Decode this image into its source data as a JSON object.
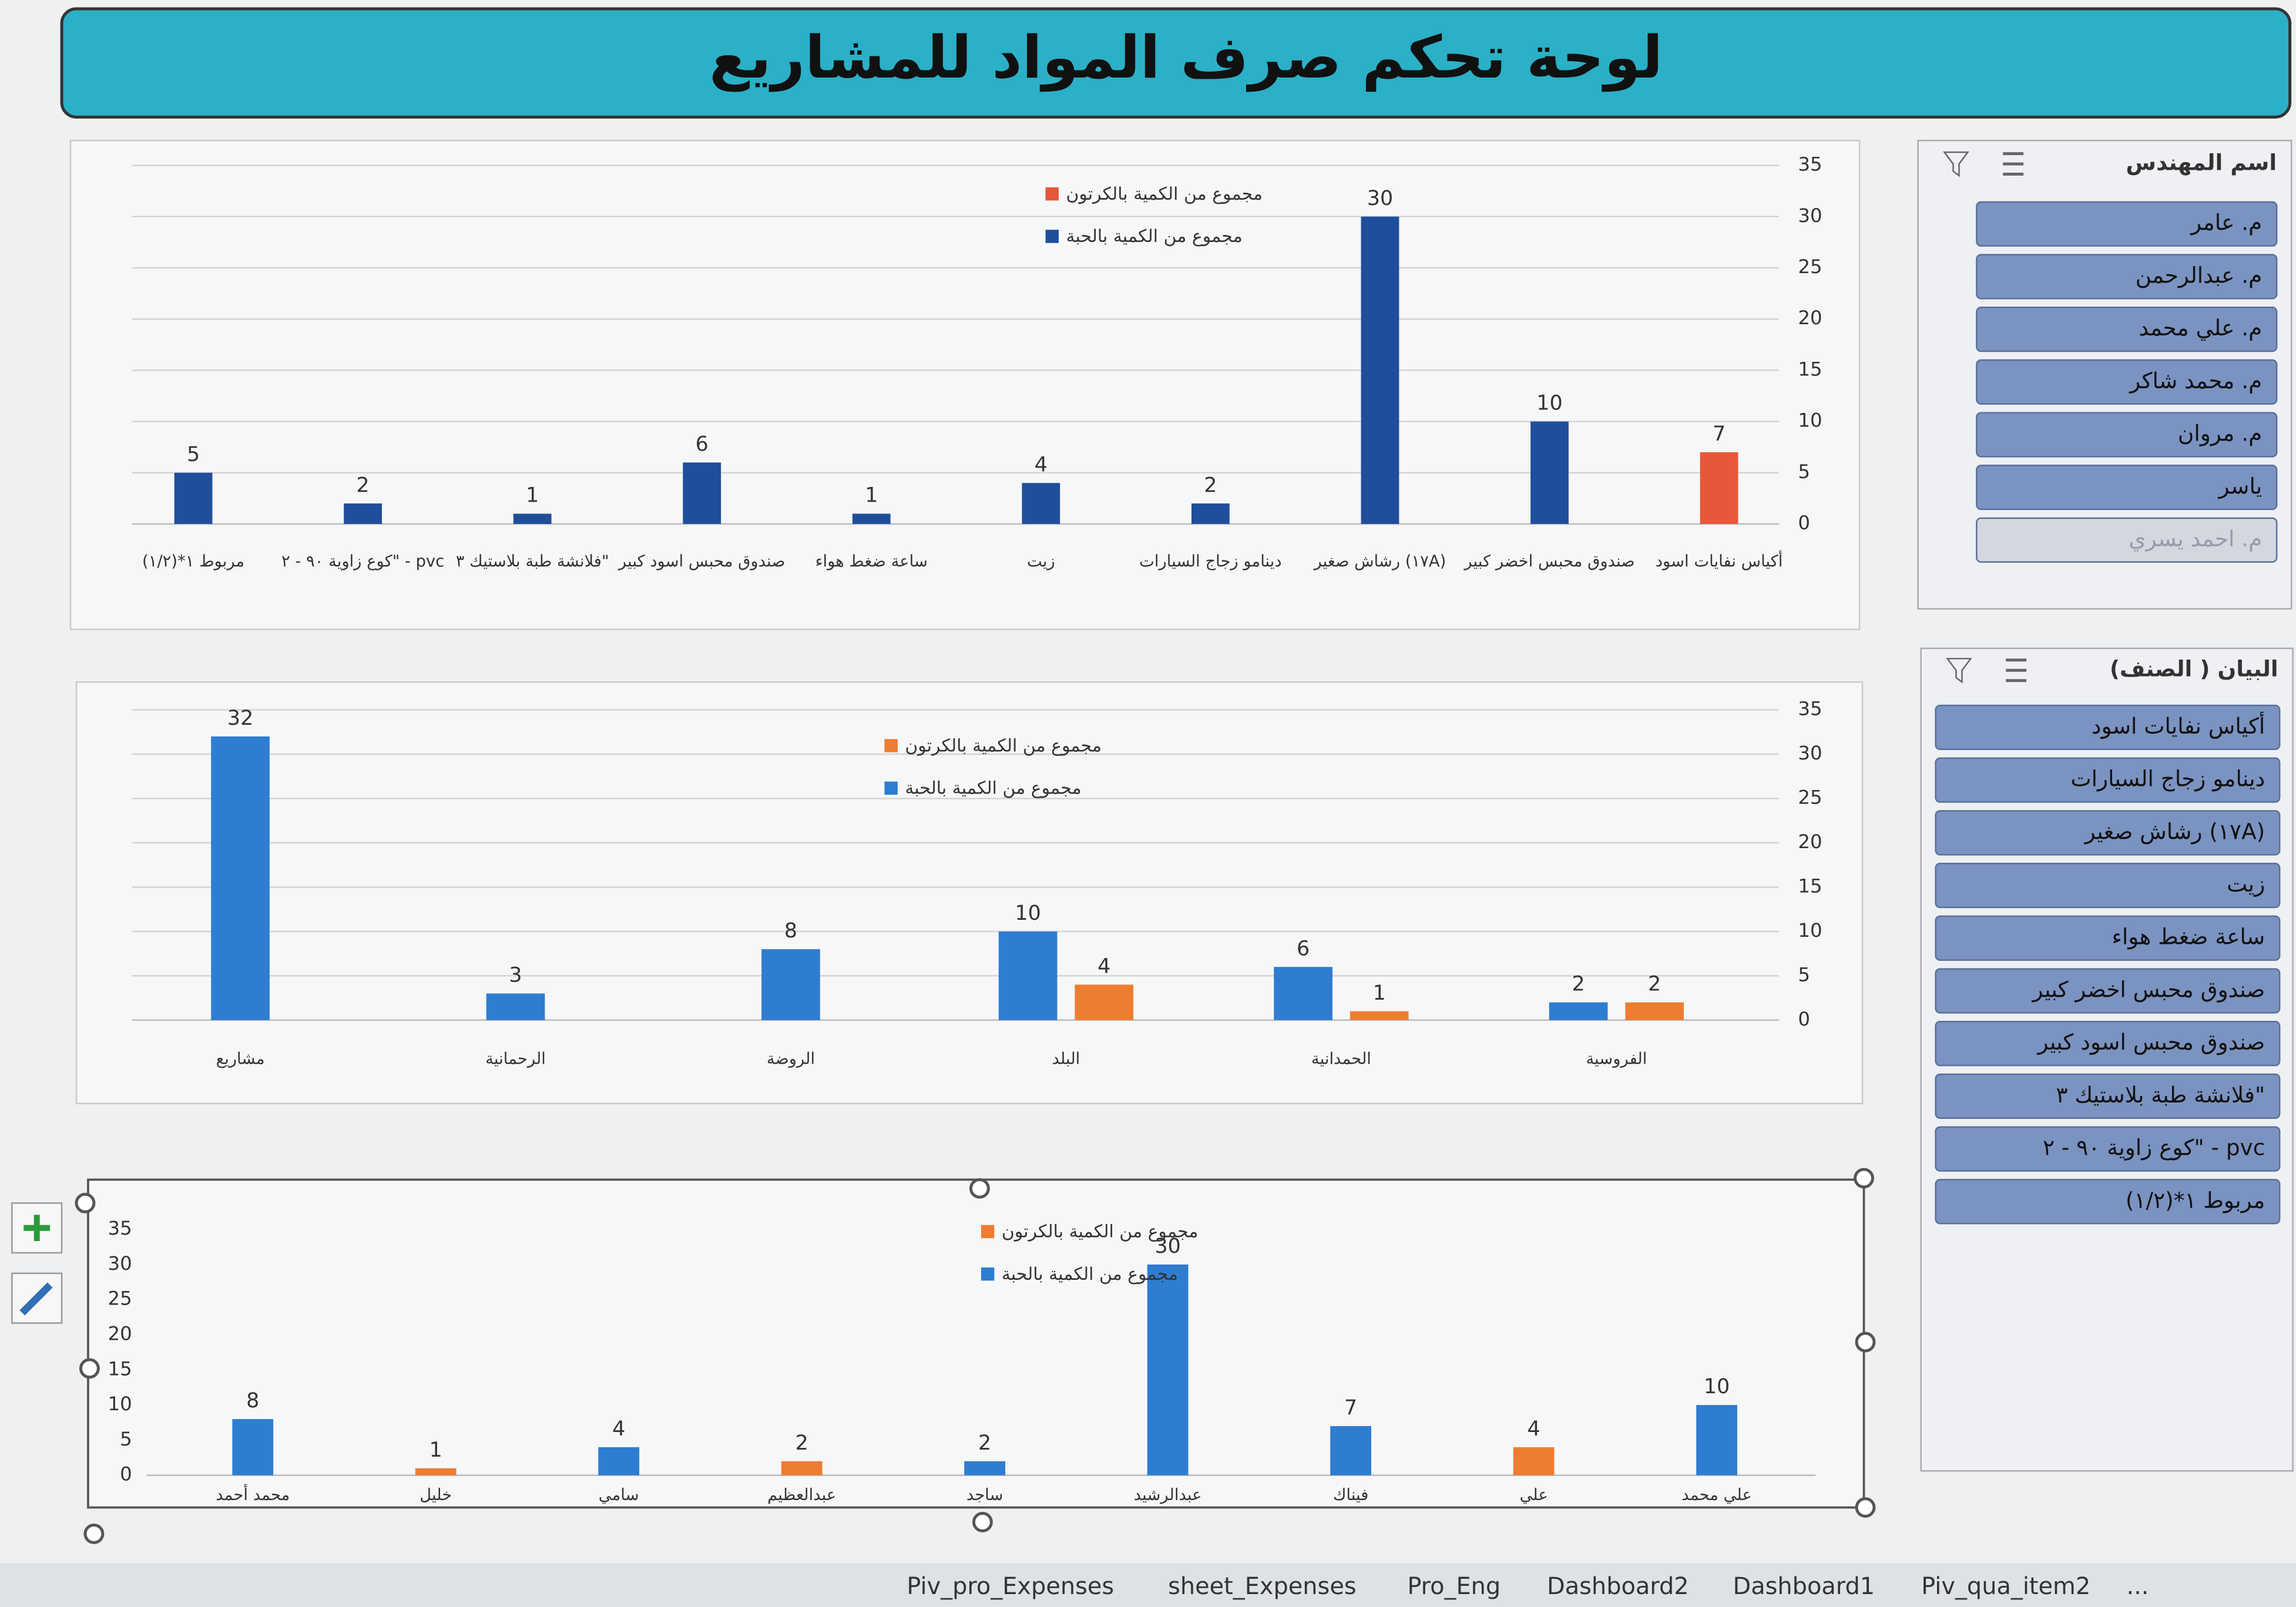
{
  "title": "لوحة تحكم صرف المواد للمشاريع",
  "chart_data": [
    {
      "type": "bar",
      "categories": [
        "مربوط ۱*(۱/۲)",
        "كوع زاوية ۹۰ - ۲\" - pvc",
        "فلانشة طبة بلاستيك ۳\"",
        "صندوق محبس اسود كبير",
        "ساعة ضغط هواء",
        "زيت",
        "دينامو زجاج السيارات",
        "رشاش صغير (۱۷A)",
        "صندوق محبس اخضر كبير",
        "أكياس نفايات اسود"
      ],
      "series": [
        {
          "name": "مجموع من الكمية بالكرتون",
          "color": "#e8573a",
          "values": [
            null,
            null,
            null,
            null,
            null,
            null,
            null,
            null,
            null,
            7
          ]
        },
        {
          "name": "مجموع من الكمية بالحبة",
          "color": "#1f4e9c",
          "values": [
            5,
            2,
            1,
            6,
            1,
            4,
            2,
            30,
            10,
            null
          ]
        }
      ],
      "ylim": [
        0,
        35
      ],
      "yticks": [
        0,
        5,
        10,
        15,
        20,
        25,
        30,
        35
      ],
      "grid": true
    },
    {
      "type": "bar",
      "categories": [
        "مشاريع",
        "الرحمانية",
        "الروضة",
        "البلد",
        "الحمدانية",
        "الفروسية"
      ],
      "series": [
        {
          "name": "مجموع من الكمية بالكرتون",
          "color": "#ed7d31",
          "values": [
            null,
            null,
            null,
            4,
            1,
            2
          ]
        },
        {
          "name": "مجموع من الكمية بالحبة",
          "color": "#2e7dd1",
          "values": [
            32,
            3,
            8,
            10,
            6,
            2
          ]
        }
      ],
      "ylim": [
        0,
        35
      ],
      "yticks": [
        0,
        5,
        10,
        15,
        20,
        25,
        30,
        35
      ],
      "grid": true
    },
    {
      "type": "bar",
      "categories": [
        "محمد أحمد",
        "خليل",
        "سامي",
        "عبدالعظيم",
        "ساجد",
        "عبدالرشيد",
        "فيناك",
        "علي",
        "علي محمد"
      ],
      "series": [
        {
          "name": "مجموع من الكمية بالكرتون",
          "color": "#ed7d31",
          "values": [
            null,
            1,
            null,
            2,
            null,
            null,
            null,
            4,
            null
          ]
        },
        {
          "name": "مجموع من الكمية بالحبة",
          "color": "#2e7dd1",
          "values": [
            8,
            null,
            4,
            null,
            2,
            30,
            7,
            null,
            10
          ]
        }
      ],
      "ylim": [
        0,
        35
      ],
      "yticks": [
        0,
        5,
        10,
        15,
        20,
        25,
        30,
        35
      ],
      "grid": false
    }
  ],
  "slicers": [
    {
      "title": "اسم المهندس",
      "items": [
        "م. عامر",
        "م. عبدالرحمن",
        "م. علي محمد",
        "م. محمد شاكر",
        "م. مروان",
        "ياسر",
        "م. احمد يسري"
      ]
    },
    {
      "title": "البيان ( الصنف)",
      "items": [
        "أكياس نفايات اسود",
        "دينامو زجاج السيارات",
        "رشاش صغير (۱۷A)",
        "زيت",
        "ساعة ضغط هواء",
        "صندوق محبس اخضر كبير",
        "صندوق محبس اسود كبير",
        "فلانشة طبة بلاستيك ۳\"",
        "كوع زاوية ۹۰ - ۲\" - pvc",
        "مربوط ۱*(۱/۲)"
      ]
    }
  ],
  "sheet_tabs": [
    "Piv_pro_Expenses",
    "sheet_Expenses",
    "Pro_Eng",
    "Dashboard2",
    "Dashboard1",
    "Piv_qua_item2",
    "..."
  ]
}
